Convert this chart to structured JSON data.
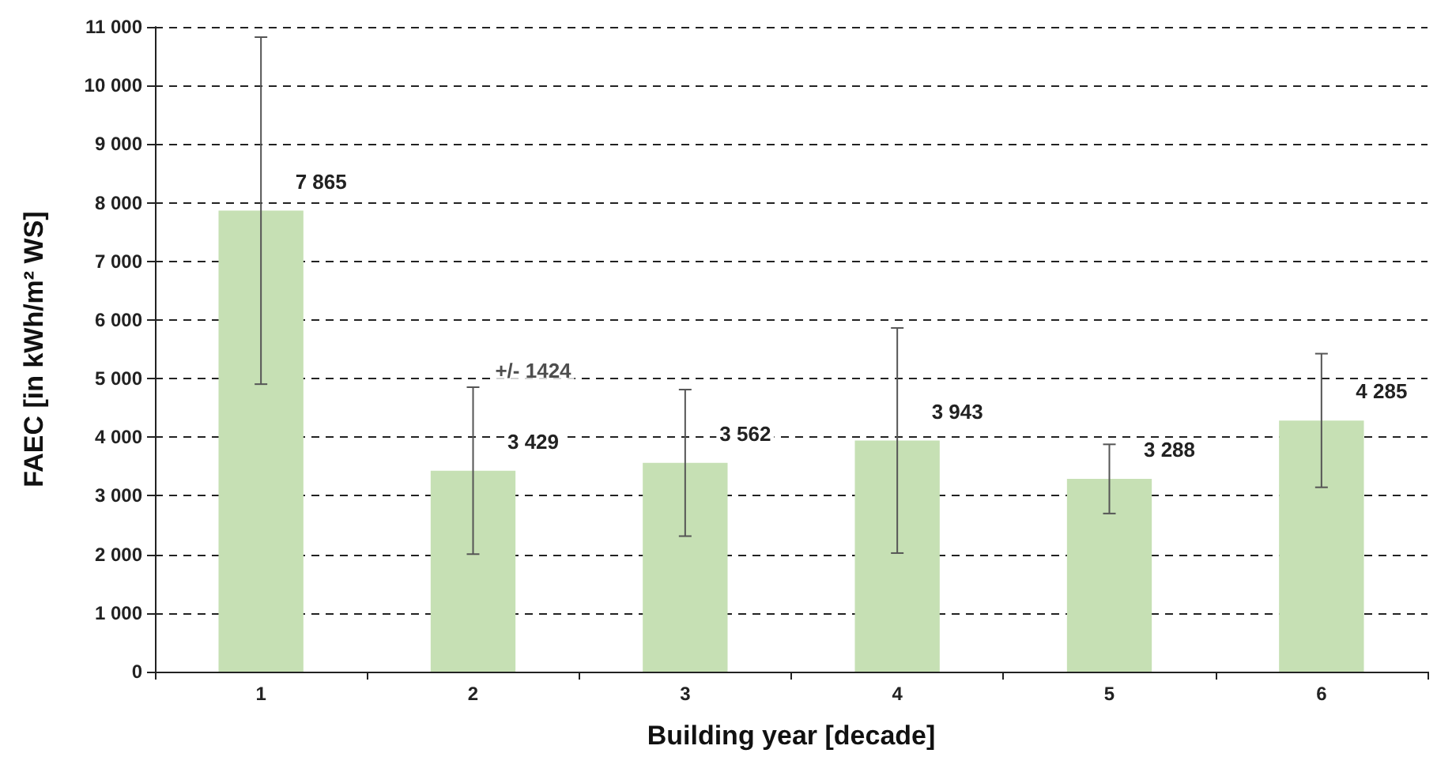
{
  "chart_data": {
    "type": "bar",
    "xlabel": "Building year [decade]",
    "ylabel": "FAEC [in kWh/m² WS]",
    "categories": [
      "1",
      "2",
      "3",
      "4",
      "5",
      "6"
    ],
    "values": [
      7865,
      3429,
      3562,
      3943,
      3288,
      4285
    ],
    "value_labels": [
      "7 865",
      "3 429",
      "3 562",
      "3 943",
      "3 288",
      "4 285"
    ],
    "errors": [
      2960,
      1424,
      1250,
      1920,
      590,
      1140
    ],
    "color": "#c6e0b4",
    "ylim": [
      0,
      11000
    ],
    "yticks": [
      {
        "value": 0,
        "label": "0"
      },
      {
        "value": 1000,
        "label": "1 000"
      },
      {
        "value": 2000,
        "label": "2 000"
      },
      {
        "value": 3000,
        "label": "3 000"
      },
      {
        "value": 4000,
        "label": "4 000"
      },
      {
        "value": 5000,
        "label": "5 000"
      },
      {
        "value": 6000,
        "label": "6 000"
      },
      {
        "value": 7000,
        "label": "7 000"
      },
      {
        "value": 8000,
        "label": "8 000"
      },
      {
        "value": 9000,
        "label": "9 000"
      },
      {
        "value": 10000,
        "label": "10 000"
      },
      {
        "value": 11000,
        "label": "11 000"
      }
    ],
    "annotations": [
      {
        "text": "+/- 1424",
        "x": "2",
        "y": 4853
      }
    ],
    "grid": "y"
  }
}
